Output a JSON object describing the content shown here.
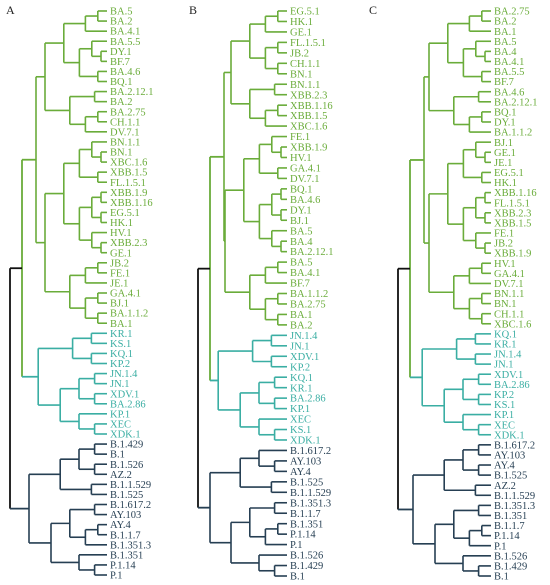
{
  "colors": {
    "green": "#6aac3a",
    "teal": "#3aaea3",
    "navy": "#263f53",
    "root": "#111111"
  },
  "panels": [
    {
      "letter": "A",
      "groups": [
        {
          "color": "green",
          "leaves": [
            "BA.5",
            "BA.2",
            "BA.4.1",
            "BA.5.5",
            "DY.1",
            "BF.7",
            "BA.4.6",
            "BQ.1",
            "BA.2.12.1",
            "BA.2",
            "BA.2.75",
            "CH.1.1",
            "DV.7.1",
            "BN.1.1",
            "BN.1",
            "XBC.1.6",
            "XBB.1.5",
            "FL.1.5.1",
            "XBB.1.9",
            "XBB.1.16",
            "EG.5.1",
            "HK.1",
            "HV.1",
            "XBB.2.3",
            "GE.1",
            "JB.2",
            "FE.1",
            "JE.1",
            "GA.4.1",
            "BJ.1",
            "BA.1.1.2",
            "BA.1"
          ]
        },
        {
          "color": "teal",
          "leaves": [
            "KR.1",
            "KS.1",
            "KQ.1",
            "KP.2",
            "JN.1.4",
            "JN.1",
            "XDV.1",
            "BA.2.86",
            "KP.1",
            "XEC",
            "XDK.1"
          ]
        },
        {
          "color": "navy",
          "leaves": [
            "B.1.429",
            "B.1",
            "B.1.526",
            "AZ.2",
            "B.1.1.529",
            "B.1.525",
            "B.1.617.2",
            "AY.103",
            "AY.4",
            "B.1.1.7",
            "B.1.351.3",
            "B.1.351",
            "P.1.14",
            "P.1"
          ]
        }
      ]
    },
    {
      "letter": "B",
      "groups": [
        {
          "color": "green",
          "leaves": [
            "EG.5.1",
            "HK.1",
            "GE.1",
            "FL.1.5.1",
            "JB.2",
            "CH.1.1",
            "BN.1",
            "BN.1.1",
            "XBB.2.3",
            "XBB.1.16",
            "XBB.1.5",
            "XBC.1.6",
            "FE.1",
            "XBB.1.9",
            "HV.1",
            "GA.4.1",
            "DV.7.1",
            "BQ.1",
            "BA.4.6",
            "DY.1",
            "BJ.1",
            "BA.5",
            "BA.4",
            "BA.2.12.1",
            "BA.5",
            "BA.4.1",
            "BF.7",
            "BA.1.1.2",
            "BA.2.75",
            "BA.1",
            "BA.2"
          ]
        },
        {
          "color": "teal",
          "leaves": [
            "JN.1.4",
            "JN.1",
            "XDV.1",
            "KP.2",
            "KQ.1",
            "KR.1",
            "BA.2.86",
            "KP.1",
            "XEC",
            "KS.1",
            "XDK.1"
          ]
        },
        {
          "color": "navy",
          "leaves": [
            "B.1.617.2",
            "AY.103",
            "AY.4",
            "B.1.525",
            "B.1.1.529",
            "B.1.351.3",
            "B.1.1.7",
            "B.1.351",
            "P.1.14",
            "P.1",
            "B.1.526",
            "B.1.429",
            "B.1"
          ]
        }
      ]
    },
    {
      "letter": "C",
      "groups": [
        {
          "color": "green",
          "leaves": [
            "BA.2.75",
            "BA.2",
            "BA.1",
            "BA.5",
            "BA.4",
            "BA.4.1",
            "BA.5.5",
            "BF.7",
            "BA.4.6",
            "BA.2.12.1",
            "BQ.1",
            "DY.1",
            "BA.1.1.2",
            "BJ.1",
            "GE.1",
            "JE.1",
            "EG.5.1",
            "HK.1",
            "XBB.1.16",
            "FL.1.5.1",
            "XBB.2.3",
            "XBB.1.5",
            "FE.1",
            "JB.2",
            "XBB.1.9",
            "HV.1",
            "GA.4.1",
            "DV.7.1",
            "BN.1.1",
            "BN.1",
            "CH.1.1",
            "XBC.1.6"
          ]
        },
        {
          "color": "teal",
          "leaves": [
            "KQ.1",
            "KR.1",
            "JN.1.4",
            "JN.1",
            "XDV.1",
            "BA.2.86",
            "KP.2",
            "KS.1",
            "KP.1",
            "XEC",
            "XDK.1"
          ]
        },
        {
          "color": "navy",
          "leaves": [
            "B.1.617.2",
            "AY.103",
            "AY.4",
            "B.1.525",
            "AZ.2",
            "B.1.1.529",
            "B.1.351.3",
            "B.1.351",
            "B.1.1.7",
            "P.1.14",
            "P.1",
            "B.1.526",
            "B.1.429",
            "B.1"
          ]
        }
      ]
    }
  ]
}
